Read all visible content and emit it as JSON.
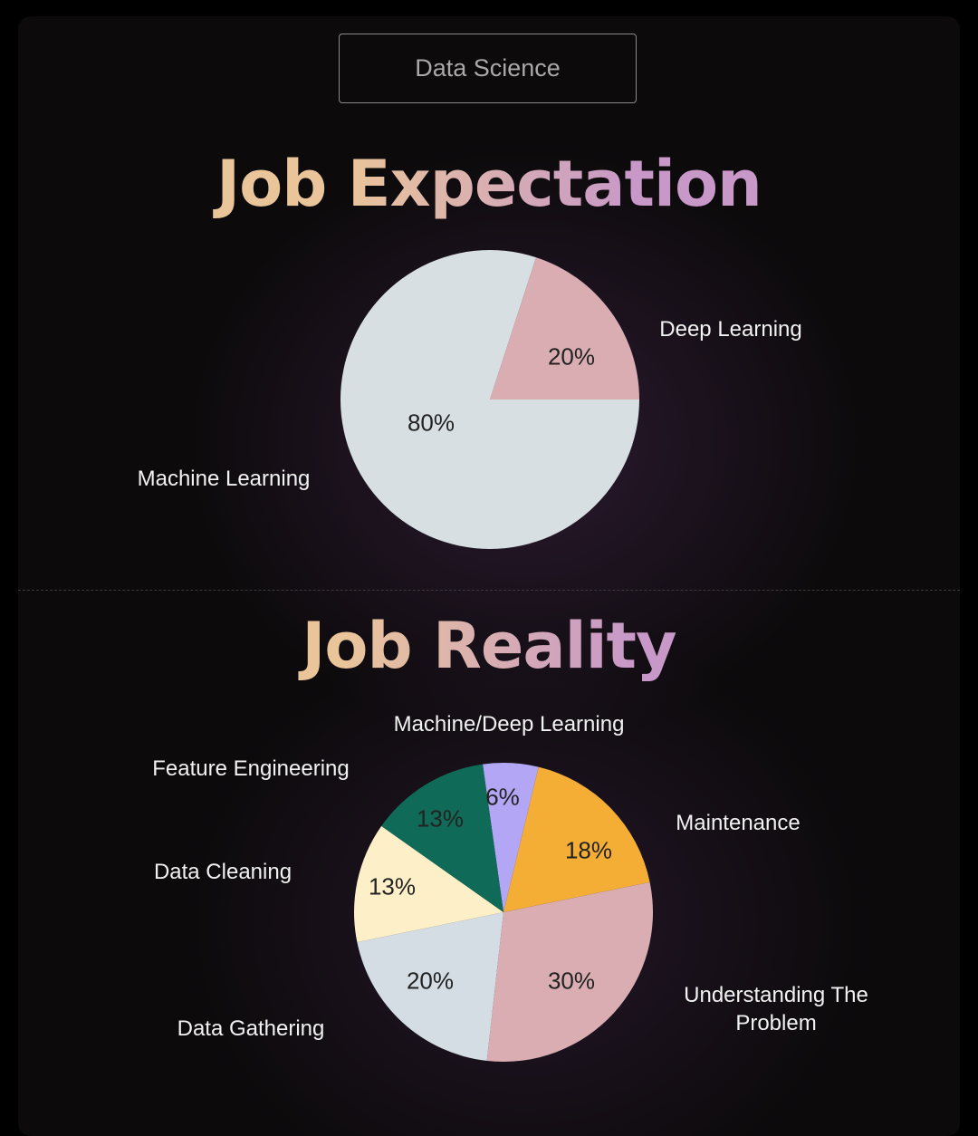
{
  "header": {
    "tag": "Data Science"
  },
  "chart_data": [
    {
      "type": "pie",
      "title": "Job Expectation",
      "categories": [
        "Deep Learning",
        "Machine Learning"
      ],
      "values": [
        20,
        80
      ],
      "value_labels": [
        "20%",
        "80%"
      ],
      "colors": [
        "#d9adb2",
        "#d8dfe3"
      ]
    },
    {
      "type": "pie",
      "title": "Job Reality",
      "categories": [
        "Machine/Deep Learning",
        "Maintenance",
        "Understanding The Problem",
        "Data Gathering",
        "Data Cleaning",
        "Feature Engineering"
      ],
      "values": [
        6,
        18,
        30,
        20,
        13,
        13
      ],
      "value_labels": [
        "6%",
        "18%",
        "30%",
        "20%",
        "13%",
        "13%"
      ],
      "colors": [
        "#b3a7f5",
        "#f5ae35",
        "#d9adb2",
        "#d3dde3",
        "#fdefc8",
        "#0f6b57"
      ]
    }
  ]
}
